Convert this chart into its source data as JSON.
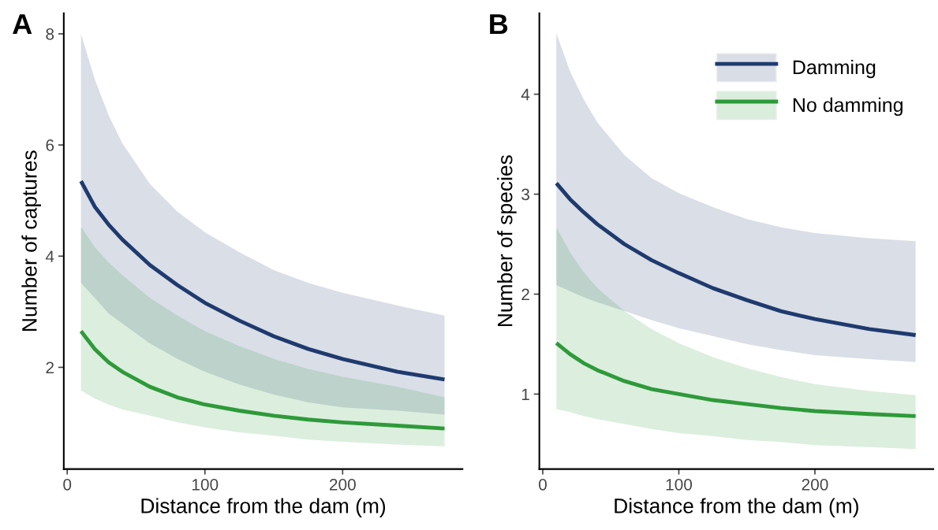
{
  "chart_data": [
    {
      "type": "line",
      "title": "A",
      "xlabel": "Distance from the dam (m)",
      "ylabel": "Number of captures",
      "xlim": [
        -2.5,
        287
      ],
      "xticks": [
        0,
        100,
        200
      ],
      "ylim": [
        0.17,
        8.37
      ],
      "yticks": [
        2,
        4,
        6,
        8
      ],
      "grid": false,
      "legend": false,
      "series": [
        {
          "color": "#1f3a6e",
          "x": [
            10,
            20,
            30,
            40,
            60,
            80,
            100,
            125,
            150,
            175,
            200,
            240,
            274
          ],
          "values": [
            5.35,
            4.89,
            4.57,
            4.3,
            3.84,
            3.48,
            3.16,
            2.84,
            2.56,
            2.33,
            2.15,
            1.92,
            1.78
          ],
          "upper": [
            8.0,
            7.18,
            6.54,
            6.03,
            5.3,
            4.8,
            4.43,
            4.07,
            3.75,
            3.52,
            3.34,
            3.11,
            2.93
          ],
          "lower": [
            3.52,
            3.25,
            2.97,
            2.79,
            2.43,
            2.15,
            1.92,
            1.69,
            1.51,
            1.37,
            1.28,
            1.22,
            1.15
          ]
        },
        {
          "color": "#2e9a3a",
          "x": [
            10,
            20,
            30,
            40,
            60,
            80,
            100,
            125,
            150,
            175,
            200,
            240,
            274
          ],
          "values": [
            2.65,
            2.33,
            2.09,
            1.92,
            1.65,
            1.46,
            1.33,
            1.22,
            1.13,
            1.06,
            1.01,
            0.95,
            0.9
          ],
          "upper": [
            4.53,
            4.16,
            3.89,
            3.66,
            3.25,
            2.93,
            2.65,
            2.38,
            2.15,
            1.97,
            1.83,
            1.65,
            1.46
          ],
          "lower": [
            1.58,
            1.44,
            1.33,
            1.24,
            1.13,
            1.01,
            0.92,
            0.83,
            0.77,
            0.7,
            0.66,
            0.61,
            0.58
          ]
        }
      ]
    },
    {
      "type": "line",
      "title": "B",
      "xlabel": "Distance from the dam (m)",
      "ylabel": "Number of species",
      "xlim": [
        -2.5,
        287
      ],
      "xticks": [
        0,
        100,
        200
      ],
      "ylim": [
        0.25,
        4.81
      ],
      "yticks": [
        1,
        2,
        3,
        4
      ],
      "grid": false,
      "legend": "top right",
      "series": [
        {
          "name": "Damming",
          "color": "#1f3a6e",
          "x": [
            10,
            20,
            30,
            40,
            60,
            80,
            100,
            125,
            150,
            175,
            200,
            240,
            274
          ],
          "values": [
            3.11,
            2.95,
            2.82,
            2.7,
            2.5,
            2.34,
            2.21,
            2.06,
            1.94,
            1.83,
            1.75,
            1.65,
            1.59
          ],
          "upper": [
            4.61,
            4.23,
            3.95,
            3.72,
            3.39,
            3.16,
            3.01,
            2.87,
            2.75,
            2.67,
            2.61,
            2.56,
            2.53
          ],
          "lower": [
            2.09,
            2.03,
            1.97,
            1.92,
            1.83,
            1.74,
            1.66,
            1.58,
            1.5,
            1.44,
            1.39,
            1.35,
            1.32
          ]
        },
        {
          "name": "No damming",
          "color": "#2e9a3a",
          "x": [
            10,
            20,
            30,
            40,
            60,
            80,
            100,
            125,
            150,
            175,
            200,
            240,
            274
          ],
          "values": [
            1.51,
            1.4,
            1.31,
            1.24,
            1.13,
            1.05,
            1.0,
            0.94,
            0.9,
            0.86,
            0.83,
            0.8,
            0.78
          ],
          "upper": [
            2.67,
            2.42,
            2.22,
            2.06,
            1.83,
            1.65,
            1.51,
            1.37,
            1.26,
            1.17,
            1.1,
            1.03,
            0.99
          ],
          "lower": [
            0.85,
            0.82,
            0.78,
            0.75,
            0.7,
            0.65,
            0.61,
            0.58,
            0.54,
            0.52,
            0.49,
            0.47,
            0.45
          ]
        }
      ]
    }
  ]
}
